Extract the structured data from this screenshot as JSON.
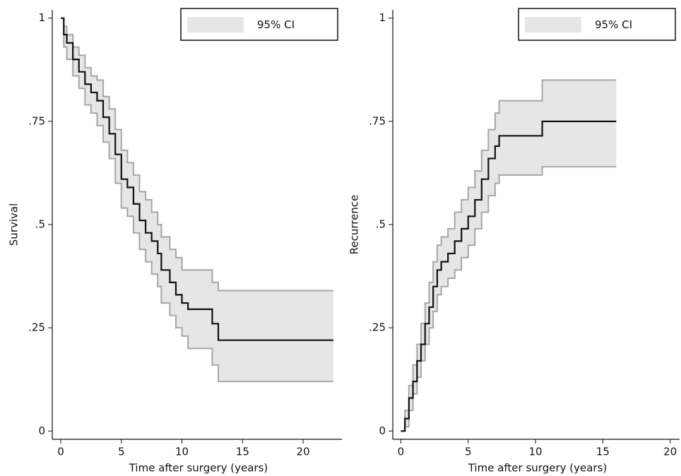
{
  "chart_data": [
    {
      "type": "line",
      "step": "post",
      "ylabel": "Survival",
      "xlabel": "Time after surgery (years)",
      "x": [
        0,
        0.25,
        0.5,
        1,
        1.5,
        2,
        2.5,
        3,
        3.5,
        4,
        4.5,
        5,
        5.5,
        6,
        6.5,
        7,
        7.5,
        8,
        8.3,
        9,
        9.5,
        10,
        10.5,
        12.5,
        13,
        22.5
      ],
      "values": [
        1,
        0.96,
        0.94,
        0.9,
        0.87,
        0.84,
        0.82,
        0.8,
        0.76,
        0.72,
        0.67,
        0.61,
        0.59,
        0.55,
        0.51,
        0.48,
        0.46,
        0.43,
        0.39,
        0.36,
        0.33,
        0.31,
        0.295,
        0.26,
        0.22,
        0.22
      ],
      "color": "#111111",
      "ci": {
        "name": "95% CI",
        "fill": "#e6e6e6",
        "edge": "#a6a6a6",
        "lower": [
          1,
          0.93,
          0.9,
          0.86,
          0.83,
          0.79,
          0.77,
          0.74,
          0.7,
          0.66,
          0.6,
          0.54,
          0.52,
          0.48,
          0.44,
          0.41,
          0.38,
          0.35,
          0.31,
          0.28,
          0.25,
          0.23,
          0.2,
          0.16,
          0.12,
          0.12
        ],
        "upper": [
          1,
          0.98,
          0.96,
          0.93,
          0.91,
          0.88,
          0.86,
          0.85,
          0.81,
          0.78,
          0.73,
          0.68,
          0.65,
          0.62,
          0.58,
          0.56,
          0.53,
          0.5,
          0.47,
          0.44,
          0.42,
          0.39,
          0.39,
          0.36,
          0.34,
          0.34
        ]
      },
      "xlim": [
        -0.7,
        23.2
      ],
      "ylim": [
        -0.02,
        1.02
      ],
      "xticks": [
        0,
        5,
        10,
        15,
        20
      ],
      "yticks": [
        0,
        {
          "value": 0.25,
          "label": ".25"
        },
        {
          "value": 0.5,
          "label": ".5"
        },
        {
          "value": 0.75,
          "label": ".75"
        },
        1
      ],
      "legend": "top-right"
    },
    {
      "type": "line",
      "step": "post",
      "ylabel": "Recurrence",
      "xlabel": "Time after surgery (years)",
      "x": [
        0,
        0.3,
        0.6,
        0.9,
        1.2,
        1.5,
        1.8,
        2.1,
        2.4,
        2.7,
        3,
        3.5,
        4,
        4.5,
        5,
        5.5,
        6,
        6.5,
        7,
        7.3,
        10.5,
        16
      ],
      "values": [
        0,
        0.03,
        0.08,
        0.12,
        0.17,
        0.21,
        0.26,
        0.3,
        0.35,
        0.39,
        0.41,
        0.43,
        0.46,
        0.49,
        0.52,
        0.56,
        0.61,
        0.66,
        0.69,
        0.715,
        0.75,
        0.75
      ],
      "color": "#111111",
      "ci": {
        "name": "95% CI",
        "fill": "#e6e6e6",
        "edge": "#a6a6a6",
        "lower": [
          0,
          0.01,
          0.05,
          0.09,
          0.13,
          0.17,
          0.21,
          0.25,
          0.29,
          0.33,
          0.35,
          0.37,
          0.39,
          0.42,
          0.45,
          0.49,
          0.53,
          0.57,
          0.6,
          0.62,
          0.64,
          0.64
        ],
        "upper": [
          0,
          0.05,
          0.11,
          0.16,
          0.21,
          0.26,
          0.31,
          0.36,
          0.41,
          0.45,
          0.47,
          0.49,
          0.53,
          0.56,
          0.59,
          0.63,
          0.68,
          0.73,
          0.77,
          0.8,
          0.85,
          0.85
        ]
      },
      "xlim": [
        -0.6,
        20.7
      ],
      "ylim": [
        -0.02,
        1.02
      ],
      "xticks": [
        0,
        5,
        10,
        15,
        20
      ],
      "yticks": [
        0,
        {
          "value": 0.25,
          "label": ".25"
        },
        {
          "value": 0.5,
          "label": ".5"
        },
        {
          "value": 0.75,
          "label": ".75"
        },
        1
      ],
      "legend": "top-right"
    }
  ]
}
